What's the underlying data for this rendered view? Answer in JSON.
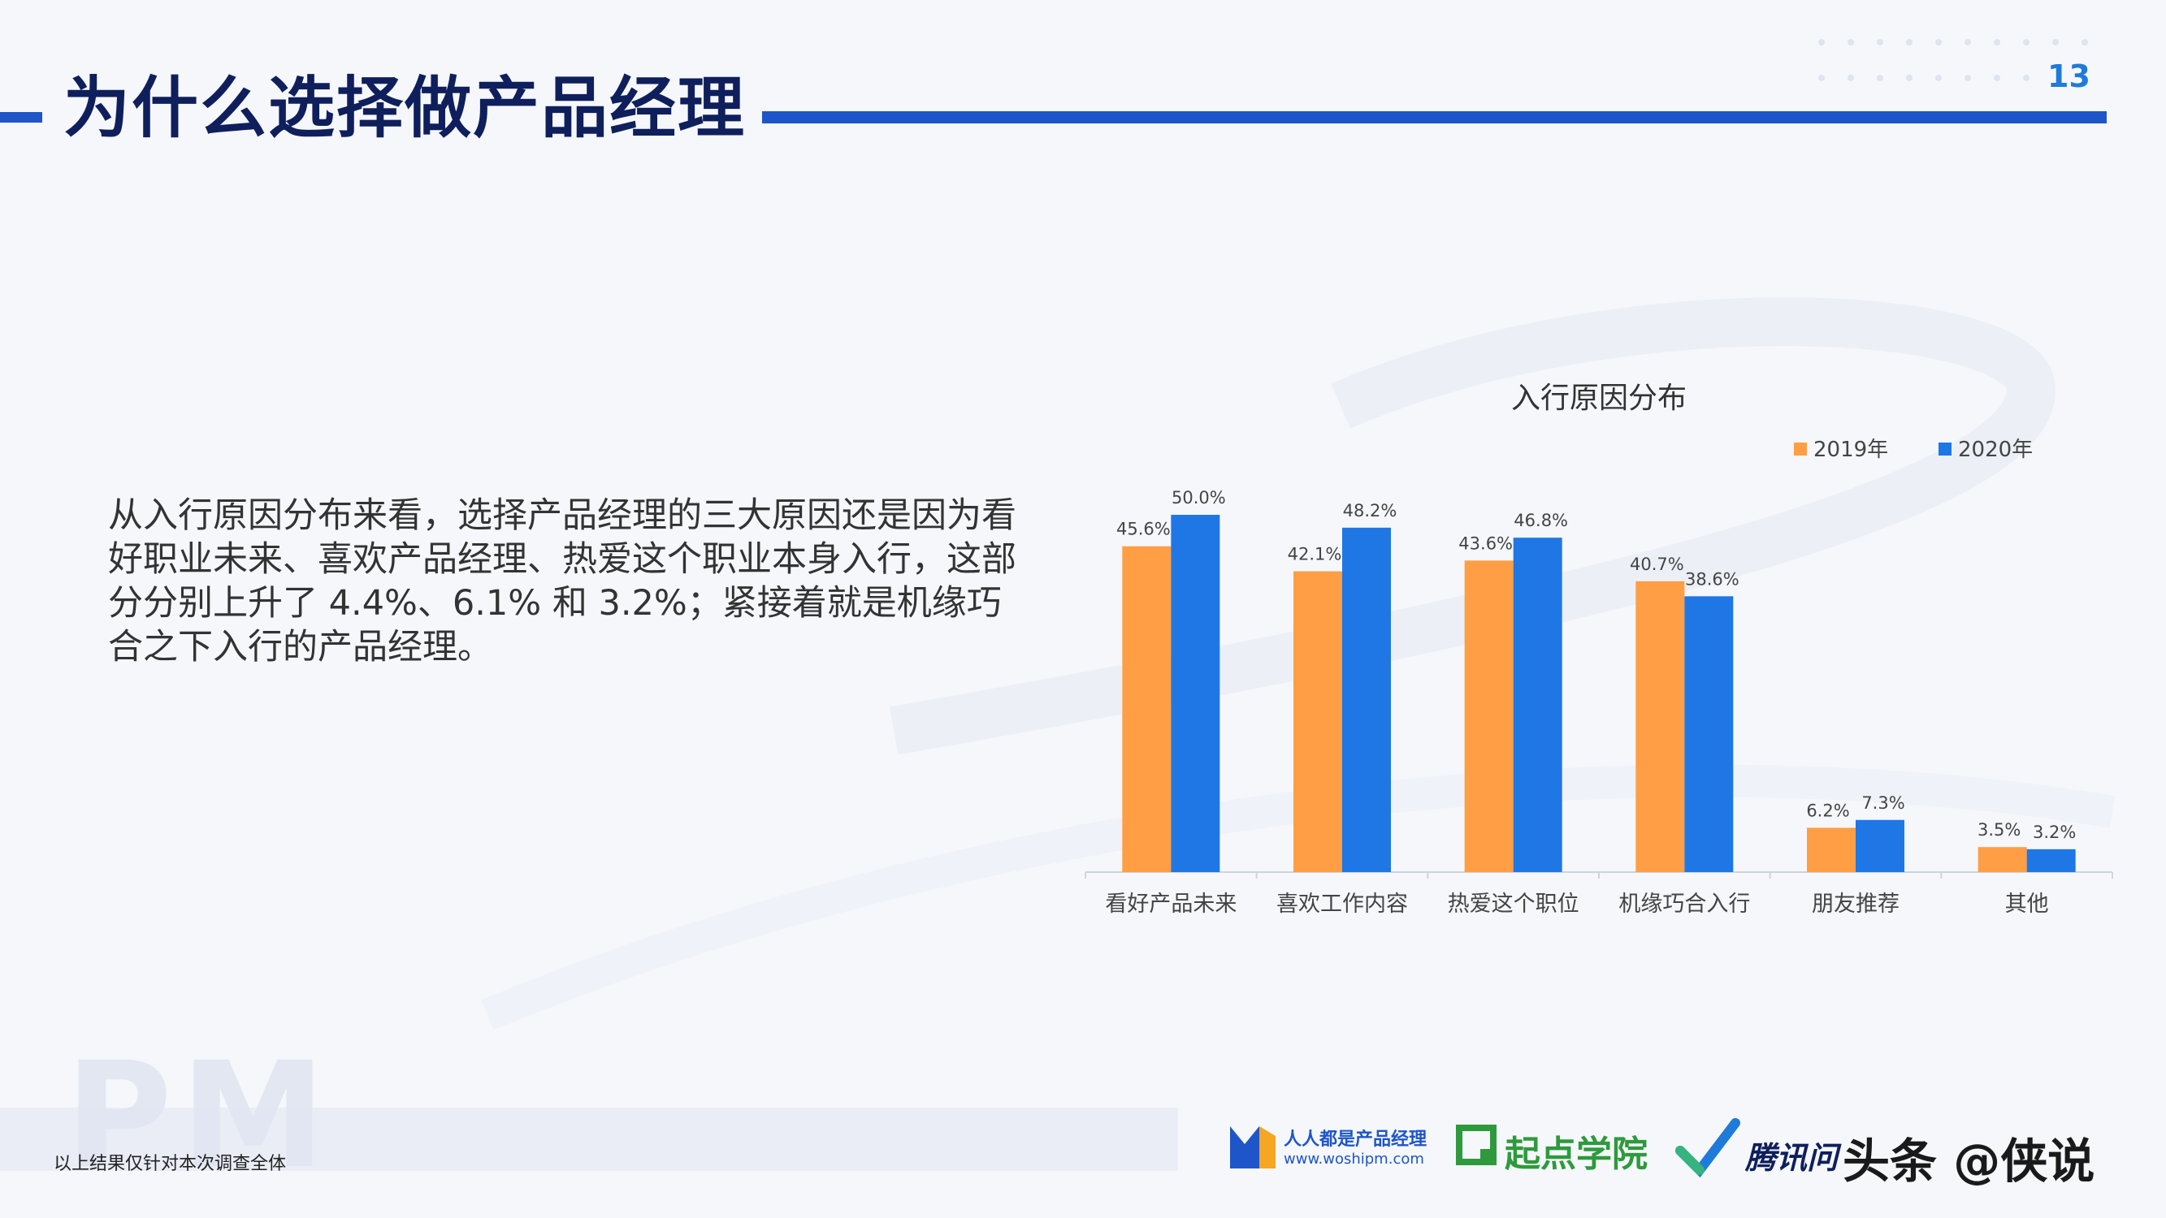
{
  "header": {
    "title": "为什么选择做产品经理",
    "page_number": "13"
  },
  "body_text": "从入行原因分布来看，选择产品经理的三大原因还是因为看好职业未来、喜欢产品经理、热爱这个职业本身入行，这部分分别上升了 4.4%、6.1% 和 3.2%；紧接着就是机缘巧合之下入行的产品经理。",
  "footnote": "以上结果仅针对本次调查全体",
  "watermark": "PM",
  "logos": {
    "woshipm_name": "人人都是产品经理",
    "woshipm_url": "www.woshipm.com",
    "qidian": "起点学院",
    "tencent": "腾讯问",
    "toutiao": "头条 @侠说"
  },
  "colors": {
    "series_2019": "#ff9e44",
    "series_2020": "#1f77e5",
    "title": "#0f1f5c",
    "accent": "#1e55c8",
    "page_number": "#1e7bd9"
  },
  "chart_data": {
    "type": "bar",
    "title": "入行原因分布",
    "categories": [
      "看好产品未来",
      "喜欢工作内容",
      "热爱这个职位",
      "机缘巧合入行",
      "朋友推荐",
      "其他"
    ],
    "series": [
      {
        "name": "2019年",
        "values": [
          45.6,
          42.1,
          43.6,
          40.7,
          6.2,
          3.5
        ],
        "labels": [
          "45.6%",
          "42.1%",
          "43.6%",
          "40.7%",
          "6.2%",
          "3.5%"
        ],
        "color": "#ff9e44"
      },
      {
        "name": "2020年",
        "values": [
          50.0,
          48.2,
          46.8,
          38.6,
          7.3,
          3.2
        ],
        "labels": [
          "50.0%",
          "48.2%",
          "46.8%",
          "38.6%",
          "7.3%",
          "3.2%"
        ],
        "color": "#1f77e5"
      }
    ],
    "ylim": [
      0,
      50
    ],
    "legend": "top-right",
    "grid": false
  }
}
